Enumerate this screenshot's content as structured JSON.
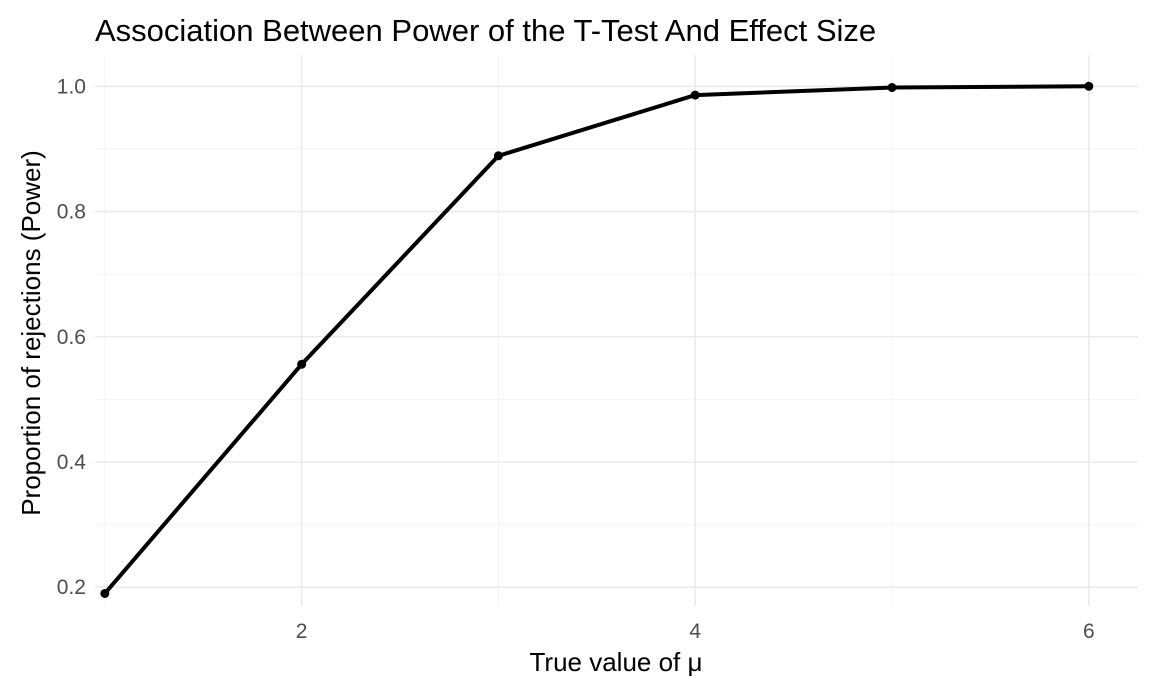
{
  "chart_data": {
    "type": "line",
    "title": "Association Between Power of the T-Test And Effect Size",
    "xlabel": "True value of μ",
    "ylabel": "Proportion of rejections (Power)",
    "x": [
      1,
      2,
      3,
      4,
      5,
      6
    ],
    "series": [
      {
        "values": [
          0.19,
          0.556,
          0.889,
          0.986,
          0.998,
          1.0
        ]
      }
    ],
    "xlim": [
      0.95,
      6.25
    ],
    "ylim": [
      0.17,
      1.05
    ],
    "x_ticks": [
      2,
      4,
      6
    ],
    "x_tick_labels": [
      "2",
      "4",
      "6"
    ],
    "y_ticks": [
      0.2,
      0.4,
      0.6,
      0.8,
      1.0
    ],
    "y_tick_labels": [
      "0.2",
      "0.4",
      "0.6",
      "0.8",
      "1.0"
    ],
    "grid": true,
    "legend": "none",
    "colors": {
      "line": "#000000",
      "grid": "#ebebeb",
      "background": "#ffffff"
    }
  }
}
